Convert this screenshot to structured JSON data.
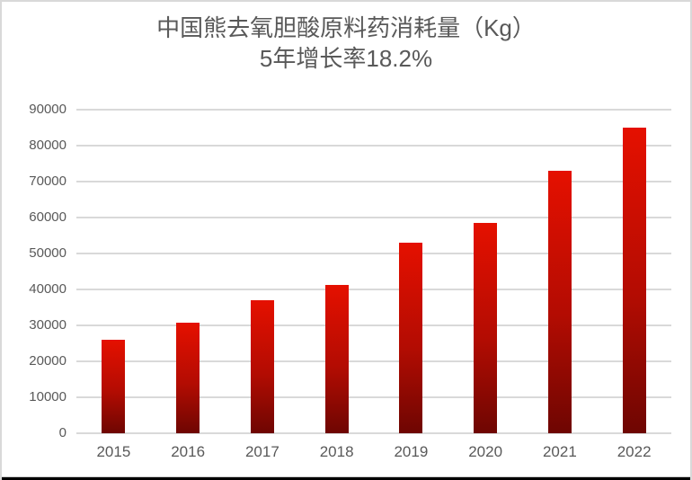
{
  "chart_data": {
    "type": "bar",
    "title": "中国熊去氧胆酸原料药消耗量（Kg）",
    "subtitle": "5年增长率18.2%",
    "categories": [
      "2015",
      "2016",
      "2017",
      "2018",
      "2019",
      "2020",
      "2021",
      "2022"
    ],
    "values": [
      26000,
      30700,
      37000,
      41300,
      52900,
      58600,
      72900,
      85100
    ],
    "xlabel": "",
    "ylabel": "",
    "ylim": [
      0,
      90000
    ],
    "ytick_interval": 10000,
    "ytick_labels": [
      "0",
      "10000",
      "20000",
      "30000",
      "40000",
      "50000",
      "60000",
      "70000",
      "80000",
      "90000"
    ],
    "grid": "horizontal",
    "legend_position": "none",
    "colors": {
      "bar_gradient_top": "#e51000",
      "bar_gradient_mid": "#b30c02",
      "bar_gradient_bottom": "#6e0602",
      "gridline": "#d9d9d9",
      "axis_line": "#d9d9d9",
      "text": "#595959",
      "background": "#ffffff",
      "frame_border": "#d9d9d9",
      "bottom_edge": "#000000"
    }
  }
}
